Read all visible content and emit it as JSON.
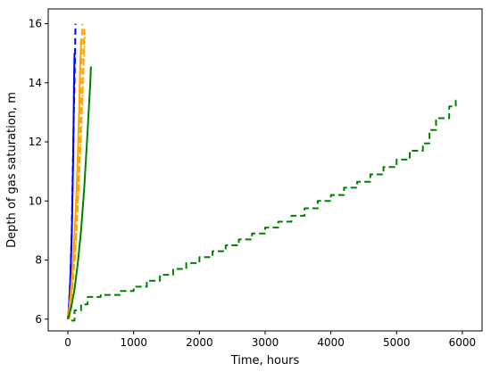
{
  "chart_data": {
    "type": "line",
    "title": "",
    "xlabel": "Time, hours",
    "ylabel": "Depth of gas saturation, m",
    "xlim": [
      -300,
      6300
    ],
    "ylim": [
      5.6,
      16.5
    ],
    "x_ticks": [
      0,
      1000,
      2000,
      3000,
      4000,
      5000,
      6000
    ],
    "x_tick_labels": [
      "0",
      "1000",
      "2000",
      "3000",
      "4000",
      "5000",
      "6000"
    ],
    "y_ticks": [
      6,
      8,
      10,
      12,
      14,
      16
    ],
    "y_tick_labels": [
      "6",
      "8",
      "10",
      "12",
      "14",
      "16"
    ],
    "grid": false,
    "legend": "none",
    "series": [
      {
        "color": "#0000ff",
        "dash": "solid",
        "x": [
          0,
          20,
          40,
          60,
          80,
          90,
          100
        ],
        "y": [
          6.0,
          6.6,
          7.5,
          9.0,
          11.5,
          13.5,
          15.0
        ]
      },
      {
        "color": "#0000ff",
        "dash": "dashed",
        "x": [
          0,
          20,
          40,
          60,
          80,
          100,
          110,
          115
        ],
        "y": [
          6.0,
          6.6,
          7.6,
          9.2,
          11.8,
          14.0,
          15.2,
          16.0
        ]
      },
      {
        "color": "#ffa500",
        "dash": "solid",
        "x": [
          0,
          40,
          80,
          120,
          150,
          170,
          185,
          200
        ],
        "y": [
          6.0,
          6.8,
          8.0,
          9.8,
          11.5,
          13.0,
          14.5,
          15.5
        ]
      },
      {
        "color": "#ffa500",
        "dash": "dashed",
        "x": [
          0,
          50,
          100,
          150,
          180,
          200,
          220
        ],
        "y": [
          6.0,
          6.9,
          8.3,
          10.5,
          12.6,
          14.5,
          16.0
        ]
      },
      {
        "color": "#ffa500",
        "dash": "dashed",
        "x": [
          20,
          60,
          110,
          160,
          200,
          230,
          250
        ],
        "y": [
          6.0,
          6.8,
          8.2,
          10.3,
          12.5,
          14.3,
          15.9
        ]
      },
      {
        "color": "#ffa500",
        "dash": "dotted",
        "x": [
          0,
          60,
          120,
          170,
          210,
          240,
          260
        ],
        "y": [
          6.0,
          7.0,
          8.6,
          10.8,
          12.8,
          14.6,
          15.8
        ]
      },
      {
        "color": "#008000",
        "dash": "solid",
        "x": [
          0,
          50,
          100,
          150,
          200,
          250,
          300,
          340,
          350
        ],
        "y": [
          6.0,
          6.4,
          7.0,
          7.9,
          9.0,
          10.5,
          12.4,
          14.0,
          14.55
        ]
      },
      {
        "color": "#008000",
        "dash": "dashed",
        "step": true,
        "x": [
          50,
          100,
          200,
          300,
          500,
          800,
          1000,
          1200,
          1400,
          1600,
          1800,
          2000,
          2200,
          2400,
          2600,
          2800,
          3000,
          3200,
          3400,
          3600,
          3800,
          4000,
          4200,
          4400,
          4600,
          4800,
          5000,
          5200,
          5400,
          5500,
          5600,
          5800,
          5900
        ],
        "y": [
          5.95,
          6.3,
          6.5,
          6.75,
          6.82,
          6.95,
          7.1,
          7.3,
          7.5,
          7.7,
          7.9,
          8.1,
          8.3,
          8.5,
          8.7,
          8.9,
          9.1,
          9.3,
          9.5,
          9.75,
          10.0,
          10.2,
          10.45,
          10.65,
          10.9,
          11.15,
          11.4,
          11.7,
          11.95,
          12.4,
          12.8,
          13.2,
          13.4
        ]
      }
    ]
  }
}
